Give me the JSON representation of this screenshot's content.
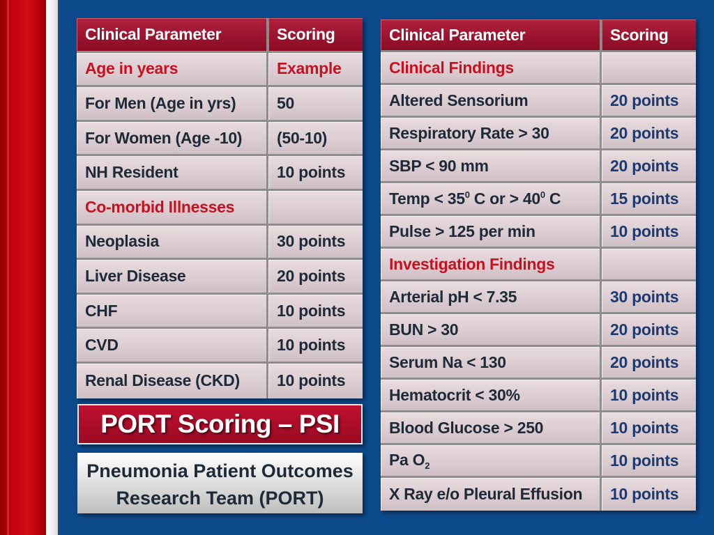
{
  "left_table": {
    "header": {
      "param": "Clinical Parameter",
      "score": "Scoring"
    },
    "rows": [
      {
        "param": "Age in years",
        "score": "Example",
        "section": true
      },
      {
        "param": "For Men (Age in yrs)",
        "score": "50"
      },
      {
        "param": "For Women (Age -10)",
        "score": "(50-10)"
      },
      {
        "param": "NH Resident",
        "score": "10 points"
      },
      {
        "param": "Co-morbid Illnesses",
        "score": "",
        "section": true
      },
      {
        "param": "Neoplasia",
        "score": "30 points"
      },
      {
        "param": "Liver Disease",
        "score": "20 points"
      },
      {
        "param": "CHF",
        "score": "10 points"
      },
      {
        "param": "CVD",
        "score": "10 points"
      },
      {
        "param": "Renal Disease (CKD)",
        "score": "10 points"
      }
    ]
  },
  "right_table": {
    "header": {
      "param": "Clinical Parameter",
      "score": "Scoring"
    },
    "rows": [
      {
        "param": "Clinical Findings",
        "score": ""
      },
      {
        "param": "Altered Sensorium",
        "score": "20 points"
      },
      {
        "param": "Respiratory Rate > 30",
        "score": "20 points"
      },
      {
        "param": "SBP < 90 mm",
        "score": "20 points"
      },
      {
        "param_parts": [
          "Temp < 35",
          "0",
          " C or > 40",
          "0",
          " C"
        ],
        "score": "15 points"
      },
      {
        "param": "Pulse > 125 per min",
        "score": "10 points"
      },
      {
        "param": "Investigation Findings",
        "score": ""
      },
      {
        "param": "Arterial pH < 7.35",
        "score": "30 points"
      },
      {
        "param": "BUN > 30",
        "score": "20 points"
      },
      {
        "param": "Serum Na < 130",
        "score": "20 points"
      },
      {
        "param": "Hematocrit < 30%",
        "score": "10 points"
      },
      {
        "param": "Blood Glucose > 250",
        "score": "10 points"
      },
      {
        "param_parts": [
          "Pa O",
          "2"
        ],
        "score": "10 points"
      },
      {
        "param": "X Ray e/o Pleural Effusion",
        "score": "10 points"
      }
    ]
  },
  "banner": {
    "title": "PORT Scoring – PSI"
  },
  "subtitle": {
    "line1": "Pneumonia Patient Outcomes",
    "line2": "Research Team (PORT)"
  },
  "colors": {
    "background": "#0d4a8c",
    "accent_red": "#c8101e",
    "header_red": "#9a0a22",
    "cell": "#dccdd1"
  }
}
